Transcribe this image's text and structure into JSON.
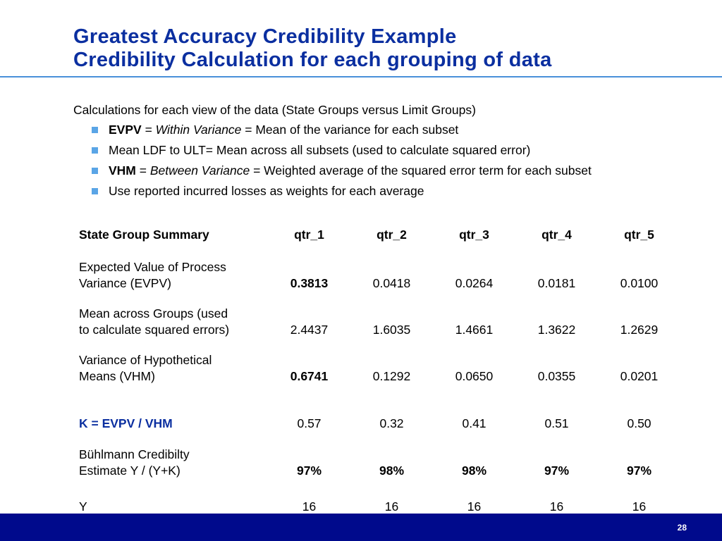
{
  "title": {
    "line1": "Greatest Accuracy Credibility Example",
    "line2": "Credibility Calculation for each grouping of data"
  },
  "intro": "Calculations for each view of the data (State Groups versus Limit Groups)",
  "bullets": [
    {
      "bold": "EVPV",
      "mid": " = ",
      "italic": "Within Variance",
      "rest": " = Mean of the variance for each subset"
    },
    {
      "bold": "",
      "mid": "",
      "italic": "",
      "rest": "Mean LDF to ULT= Mean across all subsets (used to calculate squared error)"
    },
    {
      "bold": "VHM",
      "mid": " = ",
      "italic": "Between Variance",
      "rest": " = Weighted average of the squared error term for each subset"
    },
    {
      "bold": "",
      "mid": "",
      "italic": "",
      "rest": "Use reported incurred losses as weights for each average"
    }
  ],
  "table": {
    "header": {
      "label": "State Group Summary",
      "cols": [
        "qtr_1",
        "qtr_2",
        "qtr_3",
        "qtr_4",
        "qtr_5"
      ]
    },
    "rows": [
      {
        "label1": "Expected Value of Process",
        "label2": "Variance (EVPV)",
        "values": [
          "0.3813",
          "0.0418",
          "0.0264",
          "0.0181",
          "0.0100"
        ]
      },
      {
        "label1": "Mean across Groups (used",
        "label2": "to calculate squared errors)",
        "values": [
          "2.4437",
          "1.6035",
          "1.4661",
          "1.3622",
          "1.2629"
        ]
      },
      {
        "label1": "Variance of Hypothetical",
        "label2": "Means (VHM)",
        "values": [
          "0.6741",
          "0.1292",
          "0.0650",
          "0.0355",
          "0.0201"
        ]
      },
      {
        "label1": "K = EVPV / VHM",
        "label2": "",
        "values": [
          "0.57",
          "0.32",
          "0.41",
          "0.51",
          "0.50"
        ]
      },
      {
        "label1": "Bühlmann Credibilty",
        "label2": "Estimate Y / (Y+K)",
        "values": [
          "97%",
          "98%",
          "98%",
          "97%",
          "97%"
        ]
      },
      {
        "label1": "Y",
        "label2": "",
        "values": [
          "16",
          "16",
          "16",
          "16",
          "16"
        ]
      }
    ]
  },
  "footer": {
    "page_number": "28",
    "color": "#000a8c"
  },
  "colors": {
    "title": "#0b2fa0",
    "accent_rule": "#4a90d9",
    "bullet": "#5aa5e6"
  }
}
